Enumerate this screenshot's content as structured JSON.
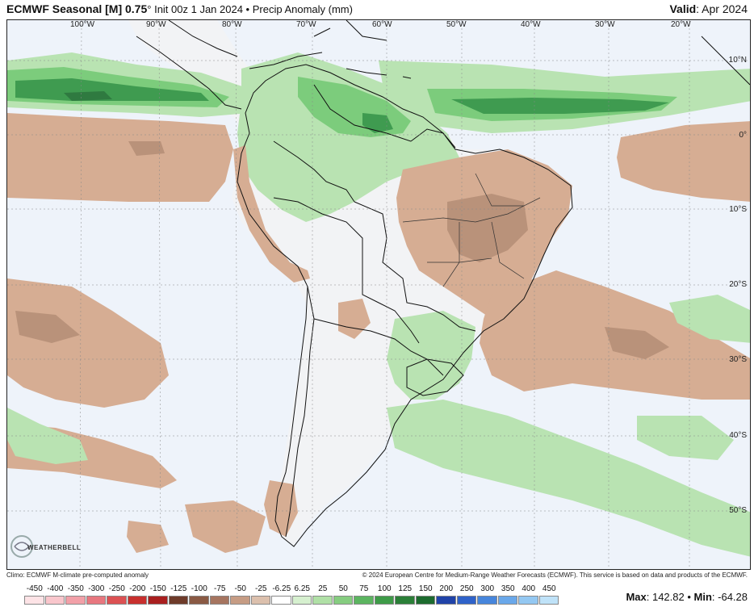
{
  "header": {
    "title_bold": "ECMWF Seasonal [M] 0.75",
    "title_degree": "°",
    "title_rest": " Init 00z 1 Jan 2024 • Precip Anomaly (mm)",
    "valid_label": "Valid",
    "valid_value": ": Apr 2024"
  },
  "map": {
    "colors": {
      "ocean": "#eef3fa",
      "land": "#f2f3f5",
      "green_light": "#b9e3b2",
      "green_mid": "#7ccc7c",
      "green_dark": "#3f9b50",
      "green_darkest": "#2f7a40",
      "brown_light": "#d6ad93",
      "brown_mid": "#b9927a",
      "border": "#111111"
    },
    "lon_labels": [
      "100°W",
      "90°W",
      "80°W",
      "70°W",
      "60°W",
      "50°W",
      "40°W",
      "30°W",
      "20°W"
    ],
    "lat_labels": [
      "10°N",
      "0°",
      "10°S",
      "20°S",
      "30°S",
      "40°S",
      "50°S"
    ],
    "logo_text": "WEATHERBELL"
  },
  "footer": {
    "left": "Climo: ECMWF M-climate pre-computed anomaly",
    "right": "© 2024 European Centre for Medium-Range Weather Forecasts (ECMWF). This service is based on data and products of the ECMWF."
  },
  "colorbar": {
    "labels": [
      "-450",
      "-400",
      "-350",
      "-300",
      "-250",
      "-200",
      "-150",
      "-125",
      "-100",
      "-75",
      "-50",
      "-25",
      "-6.25",
      "6.25",
      "25",
      "50",
      "75",
      "100",
      "125",
      "150",
      "200",
      "250",
      "300",
      "350",
      "400",
      "450"
    ],
    "colors": [
      "#fde3e6",
      "#f9c6cc",
      "#f2a0a8",
      "#e8777f",
      "#dc5153",
      "#c8302e",
      "#a91f1f",
      "#6e3b2a",
      "#8a5a44",
      "#a67560",
      "#c69c84",
      "#dcc0ad",
      "#ffffff",
      "#d6f0cf",
      "#b0e0a6",
      "#86cd80",
      "#5cb560",
      "#3e9b48",
      "#2b7f38",
      "#1c6b2e",
      "#2043a8",
      "#2f62c9",
      "#4786dc",
      "#6aa8ea",
      "#94c8f2",
      "#bfe2f8"
    ]
  },
  "stats": {
    "max_label": "Max",
    "max_value": ": 142.82 • ",
    "min_label": "Min",
    "min_value": ": -64.28"
  }
}
